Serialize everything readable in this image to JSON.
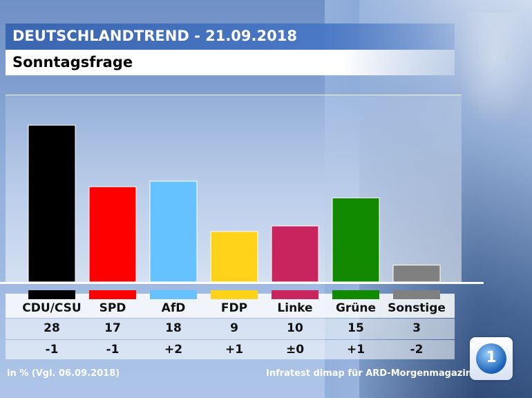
{
  "header": {
    "title": "DEUTSCHLANDTREND - 21.09.2018",
    "subtitle": "Sonntagsfrage"
  },
  "chart_data": {
    "type": "bar",
    "categories": [
      "CDU/CSU",
      "SPD",
      "AfD",
      "FDP",
      "Linke",
      "Grüne",
      "Sonstige"
    ],
    "values": [
      28,
      17,
      18,
      9,
      10,
      15,
      3
    ],
    "value_labels": [
      "28",
      "17",
      "18",
      "9",
      "10",
      "15",
      "3"
    ],
    "changes": [
      "-1",
      "-1",
      "+2",
      "+1",
      "±0",
      "+1",
      "-2"
    ],
    "colors": [
      "#000000",
      "#ff0000",
      "#66c2ff",
      "#ffd31a",
      "#c8245e",
      "#128a00",
      "#808080"
    ],
    "grid": false,
    "legend": "none"
  },
  "footer": {
    "left": "in % (Vgl. 06.09.2018)",
    "right": "Infratest dimap für ARD-Morgenmagazin"
  },
  "logo": {
    "icon": "ard-logo-icon",
    "text": "1"
  }
}
